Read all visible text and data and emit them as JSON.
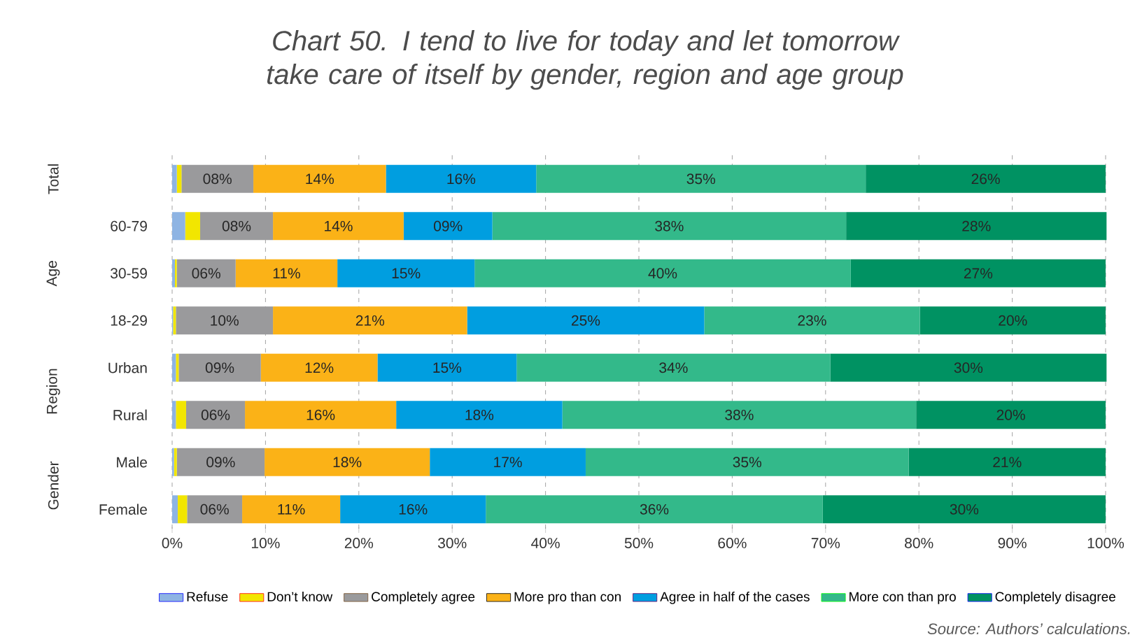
{
  "chart_data": {
    "type": "bar",
    "orientation": "horizontal",
    "stacked": true,
    "title": "Chart 50. I tend to live for today and let tomorrow take care of itself by gender, region and age group",
    "categories": [
      null,
      "60-79",
      "30-59",
      "18-29",
      "Urban",
      "Rural",
      "Male",
      "Female"
    ],
    "series": [
      {
        "name": "Refuse",
        "color": "#8eb4e3",
        "values": [
          0.5,
          1.4,
          0.3,
          0.1,
          0.4,
          0.4,
          0.2,
          0.6
        ]
      },
      {
        "name": "Don’t know",
        "color": "#f2e600",
        "values": [
          0.5,
          1.6,
          0.2,
          0.3,
          0.3,
          1.1,
          0.3,
          1.0
        ]
      },
      {
        "name": "Completely agree",
        "color": "#9a9a9c",
        "values": [
          7.7,
          7.8,
          6.3,
          10.4,
          8.8,
          6.3,
          9.4,
          5.9
        ],
        "value_labels": [
          "08%",
          "08%",
          "06%",
          "10%",
          "09%",
          "06%",
          "09%",
          "06%"
        ]
      },
      {
        "name": "More pro than con",
        "color": "#fbb217",
        "values": [
          14.2,
          14.0,
          10.9,
          20.8,
          12.5,
          16.2,
          17.7,
          10.5
        ],
        "value_labels": [
          "14%",
          "14%",
          "11%",
          "21%",
          "12%",
          "16%",
          "18%",
          "11%"
        ]
      },
      {
        "name": "Agree in half of the cases",
        "color": "#009ee0",
        "values": [
          16.1,
          9.5,
          14.7,
          25.4,
          14.9,
          17.8,
          16.7,
          15.6
        ],
        "value_labels": [
          "16%",
          "09%",
          "15%",
          "25%",
          "15%",
          "18%",
          "17%",
          "16%"
        ]
      },
      {
        "name": "More con than pro",
        "color": "#33b98a",
        "values": [
          35.3,
          37.9,
          40.3,
          23.1,
          33.6,
          37.9,
          34.6,
          36.1
        ],
        "value_labels": [
          "35%",
          "38%",
          "40%",
          "23%",
          "34%",
          "38%",
          "35%",
          "36%"
        ]
      },
      {
        "name": "Completely disagree",
        "color": "#009262",
        "values": [
          25.7,
          27.9,
          27.3,
          19.9,
          29.6,
          20.3,
          21.1,
          30.3
        ],
        "value_labels": [
          "26%",
          "28%",
          "27%",
          "20%",
          "30%",
          "20%",
          "21%",
          "30%"
        ]
      }
    ],
    "annotations": [
      "Total",
      "Age",
      "Region",
      "Gender",
      "Source: Authors’ calculations."
    ],
    "xlim": [
      0,
      100
    ],
    "xticks": [
      {
        "value": 0,
        "label": "0%"
      },
      {
        "value": 10,
        "label": "10%"
      },
      {
        "value": 20,
        "label": "20%"
      },
      {
        "value": 30,
        "label": "30%"
      },
      {
        "value": 40,
        "label": "40%"
      },
      {
        "value": 50,
        "label": "50%"
      },
      {
        "value": 60,
        "label": "60%"
      },
      {
        "value": 70,
        "label": "70%"
      },
      {
        "value": 80,
        "label": "80%"
      },
      {
        "value": 90,
        "label": "90%"
      },
      {
        "value": 100,
        "label": "100%"
      }
    ],
    "grid": "x",
    "legend": "bottom"
  }
}
